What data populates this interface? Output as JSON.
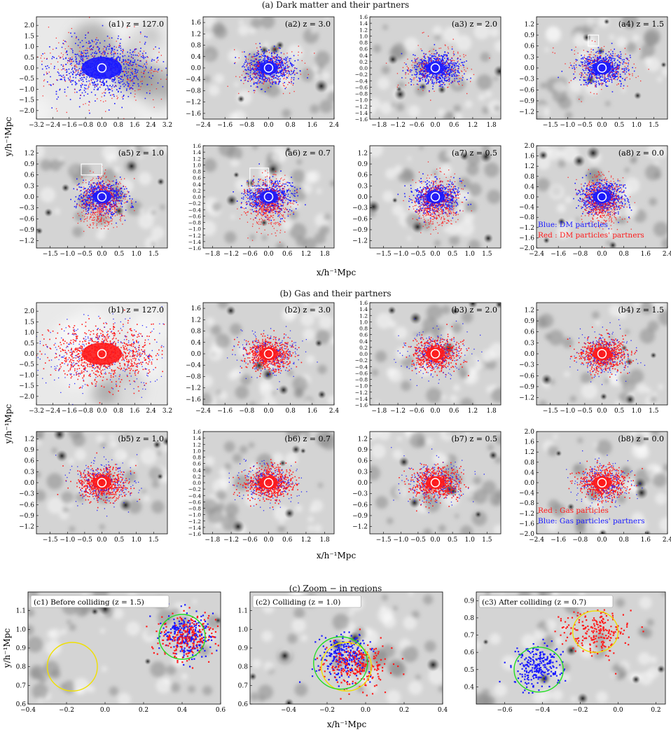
{
  "sections": {
    "a": "(a) Dark matter and their partners",
    "b": "(b) Gas and their partners",
    "c": "(c) Zoom − in regions"
  },
  "axis_labels": {
    "y": "y/h⁻¹Mpc",
    "x": "x/h⁻¹Mpc"
  },
  "colors": {
    "blue": "#1a1aff",
    "red": "#ff1a1a",
    "green": "#22dd22",
    "yellow": "#f0e000"
  },
  "chart_data": [
    {
      "id": "a1",
      "type": "scatter",
      "label": "(a1) z = 127.0",
      "primary": "blue",
      "xlim": [
        -3.2,
        3.2
      ],
      "ylim": [
        -2.4,
        2.4
      ],
      "xticks": [
        "−3.2",
        "−2.4",
        "−1.6",
        "−0.8",
        "0.0",
        "0.8",
        "1.6",
        "2.4",
        "3.2"
      ],
      "yticks": [
        "2.0",
        "1.5",
        "1.0",
        "0.5",
        "0.0",
        "−0.5",
        "−1.0",
        "−1.5",
        "−2.0"
      ],
      "bg": "smooth"
    },
    {
      "id": "a2",
      "type": "scatter",
      "label": "(a2) z = 3.0",
      "primary": "blue",
      "xlim": [
        -2.4,
        2.4
      ],
      "ylim": [
        -1.8,
        1.8
      ],
      "xticks": [
        "−2.4",
        "−1.6",
        "−0.8",
        "0.0",
        "0.8",
        "1.6",
        "2.4"
      ],
      "yticks": [
        "1.6",
        "1.2",
        "0.8",
        "0.4",
        "0.0",
        "−0.4",
        "−0.8",
        "−1.2",
        "−1.6"
      ],
      "bg": "web"
    },
    {
      "id": "a3",
      "type": "scatter",
      "label": "(a3) z = 2.0",
      "primary": "blue",
      "xlim": [
        -2.1,
        2.1
      ],
      "ylim": [
        -1.6,
        1.6
      ],
      "xticks": [
        "−1.8",
        "−1.2",
        "−0.6",
        "0.0",
        "0.6",
        "1.2",
        "1.8"
      ],
      "yticks": [
        "1.6",
        "1.4",
        "1.2",
        "1.0",
        "0.8",
        "0.6",
        "0.4",
        "0.2",
        "0.0",
        "−0.2",
        "−0.4",
        "−0.6",
        "−0.8",
        "−1.0",
        "−1.2",
        "−1.4",
        "−1.6"
      ],
      "bg": "web"
    },
    {
      "id": "a4",
      "type": "scatter",
      "label": "(a4) z = 1.5",
      "primary": "blue",
      "xlim": [
        -1.9,
        1.9
      ],
      "ylim": [
        -1.4,
        1.4
      ],
      "xticks": [
        "−1.5",
        "−1.0",
        "−0.5",
        "0.0",
        "0.5",
        "1.0",
        "1.5"
      ],
      "yticks": [
        "1.2",
        "0.9",
        "0.6",
        "0.3",
        "0.0",
        "−0.3",
        "−0.6",
        "−0.9",
        "−1.2"
      ],
      "bg": "web",
      "box": [
        -0.4,
        0.6,
        0.3,
        0.3
      ]
    },
    {
      "id": "a5",
      "type": "scatter",
      "label": "(a5) z = 1.0",
      "primary": "blue",
      "xlim": [
        -1.9,
        1.9
      ],
      "ylim": [
        -1.4,
        1.4
      ],
      "xticks": [
        "−1.5",
        "−1.0",
        "−0.5",
        "0.0",
        "0.5",
        "1.0",
        "1.5"
      ],
      "yticks": [
        "1.2",
        "0.9",
        "0.6",
        "0.3",
        "0.0",
        "−0.3",
        "−0.6",
        "−0.9",
        "−1.2"
      ],
      "bg": "web",
      "box": [
        -0.6,
        0.6,
        0.6,
        0.3
      ]
    },
    {
      "id": "a6",
      "type": "scatter",
      "label": "(a6) z = 0.7",
      "primary": "blue",
      "xlim": [
        -2.1,
        2.1
      ],
      "ylim": [
        -1.6,
        1.6
      ],
      "xticks": [
        "−1.8",
        "−1.2",
        "−0.6",
        "0.0",
        "0.6",
        "1.2",
        "1.8"
      ],
      "yticks": [
        "1.6",
        "1.4",
        "1.2",
        "1.0",
        "0.8",
        "0.6",
        "0.4",
        "0.2",
        "0.0",
        "−0.2",
        "−0.4",
        "−0.6",
        "−0.8",
        "−1.0",
        "−1.2",
        "−1.4",
        "−1.6"
      ],
      "bg": "web",
      "box": [
        -0.6,
        0.3,
        0.6,
        0.6
      ]
    },
    {
      "id": "a7",
      "type": "scatter",
      "label": "(a7) z = 0.5",
      "primary": "blue",
      "xlim": [
        -1.9,
        1.9
      ],
      "ylim": [
        -1.4,
        1.4
      ],
      "xticks": [
        "−1.5",
        "−1.0",
        "−0.5",
        "0.0",
        "0.5",
        "1.0",
        "1.5"
      ],
      "yticks": [
        "1.2",
        "0.9",
        "0.6",
        "0.3",
        "0.0",
        "−0.3",
        "−0.6",
        "−0.9",
        "−1.2"
      ],
      "bg": "web"
    },
    {
      "id": "a8",
      "type": "scatter",
      "label": "(a8) z = 0.0",
      "primary": "blue",
      "xlim": [
        -2.4,
        2.4
      ],
      "ylim": [
        -2.0,
        2.0
      ],
      "xticks": [
        "−2.4",
        "−1.6",
        "−0.8",
        "0.0",
        "0.8",
        "1.6",
        "2.4"
      ],
      "yticks": [
        "2.0",
        "1.6",
        "1.2",
        "0.8",
        "0.4",
        "0.0",
        "−0.4",
        "−0.8",
        "−1.2",
        "−1.6",
        "−2.0"
      ],
      "bg": "web",
      "legend": [
        {
          "text": "Blue: DM particles",
          "color": "blue"
        },
        {
          "text": "Red : DM particles' partners",
          "color": "red"
        }
      ]
    },
    {
      "id": "b1",
      "type": "scatter",
      "label": "(b1) z = 127.0",
      "primary": "red",
      "xlim": [
        -3.2,
        3.2
      ],
      "ylim": [
        -2.4,
        2.4
      ],
      "xticks": [
        "−3.2",
        "−2.4",
        "−1.6",
        "−0.8",
        "0.0",
        "0.8",
        "1.6",
        "2.4",
        "3.2"
      ],
      "yticks": [
        "2.0",
        "1.5",
        "1.0",
        "0.5",
        "0.0",
        "−0.5",
        "−1.0",
        "−1.5",
        "−2.0"
      ],
      "bg": "smooth"
    },
    {
      "id": "b2",
      "type": "scatter",
      "label": "(b2) z = 3.0",
      "primary": "red",
      "xlim": [
        -2.4,
        2.4
      ],
      "ylim": [
        -1.8,
        1.8
      ],
      "xticks": [
        "−2.4",
        "−1.6",
        "−0.8",
        "0.0",
        "0.8",
        "1.6",
        "2.4"
      ],
      "yticks": [
        "1.6",
        "1.2",
        "0.8",
        "0.4",
        "0.0",
        "−0.4",
        "−0.8",
        "−1.2",
        "−1.6"
      ],
      "bg": "web"
    },
    {
      "id": "b3",
      "type": "scatter",
      "label": "(b3) z = 2.0",
      "primary": "red",
      "xlim": [
        -2.1,
        2.1
      ],
      "ylim": [
        -1.6,
        1.6
      ],
      "xticks": [
        "−1.8",
        "−1.2",
        "−0.6",
        "0.0",
        "0.6",
        "1.2",
        "1.8"
      ],
      "yticks": [
        "1.6",
        "1.4",
        "1.2",
        "1.0",
        "0.8",
        "0.6",
        "0.4",
        "0.2",
        "0.0",
        "−0.2",
        "−0.4",
        "−0.6",
        "−0.8",
        "−1.0",
        "−1.2",
        "−1.4",
        "−1.6"
      ],
      "bg": "web"
    },
    {
      "id": "b4",
      "type": "scatter",
      "label": "(b4) z = 1.5",
      "primary": "red",
      "xlim": [
        -1.9,
        1.9
      ],
      "ylim": [
        -1.4,
        1.4
      ],
      "xticks": [
        "−1.5",
        "−1.0",
        "−0.5",
        "0.0",
        "0.5",
        "1.0",
        "1.5"
      ],
      "yticks": [
        "1.2",
        "0.9",
        "0.6",
        "0.3",
        "0.0",
        "−0.3",
        "−0.6",
        "−0.9",
        "−1.2"
      ],
      "bg": "web"
    },
    {
      "id": "b5",
      "type": "scatter",
      "label": "(b5) z = 1.0",
      "primary": "red",
      "xlim": [
        -1.9,
        1.9
      ],
      "ylim": [
        -1.4,
        1.4
      ],
      "xticks": [
        "−1.5",
        "−1.0",
        "−0.5",
        "0.0",
        "0.5",
        "1.0",
        "1.5"
      ],
      "yticks": [
        "1.2",
        "0.9",
        "0.6",
        "0.3",
        "0.0",
        "−0.3",
        "−0.6",
        "−0.9",
        "−1.2"
      ],
      "bg": "web"
    },
    {
      "id": "b6",
      "type": "scatter",
      "label": "(b6) z = 0.7",
      "primary": "red",
      "xlim": [
        -2.1,
        2.1
      ],
      "ylim": [
        -1.6,
        1.6
      ],
      "xticks": [
        "−1.8",
        "−1.2",
        "−0.6",
        "0.0",
        "0.6",
        "1.2",
        "1.8"
      ],
      "yticks": [
        "1.6",
        "1.4",
        "1.2",
        "1.0",
        "0.8",
        "0.6",
        "0.4",
        "0.2",
        "0.0",
        "−0.2",
        "−0.4",
        "−0.6",
        "−0.8",
        "−1.0",
        "−1.2",
        "−1.4",
        "−1.6"
      ],
      "bg": "web"
    },
    {
      "id": "b7",
      "type": "scatter",
      "label": "(b7) z = 0.5",
      "primary": "red",
      "xlim": [
        -1.9,
        1.9
      ],
      "ylim": [
        -1.4,
        1.4
      ],
      "xticks": [
        "−1.5",
        "−1.0",
        "−0.5",
        "0.0",
        "0.5",
        "1.0",
        "1.5"
      ],
      "yticks": [
        "1.2",
        "0.9",
        "0.6",
        "0.3",
        "0.0",
        "−0.3",
        "−0.6",
        "−0.9",
        "−1.2"
      ],
      "bg": "web"
    },
    {
      "id": "b8",
      "type": "scatter",
      "label": "(b8) z = 0.0",
      "primary": "red",
      "xlim": [
        -2.4,
        2.4
      ],
      "ylim": [
        -2.0,
        2.0
      ],
      "xticks": [
        "−2.4",
        "−1.6",
        "−0.8",
        "0.0",
        "0.8",
        "1.6",
        "2.4"
      ],
      "yticks": [
        "2.0",
        "1.6",
        "1.2",
        "0.8",
        "0.4",
        "0.0",
        "−0.4",
        "−0.8",
        "−1.2",
        "−1.6",
        "−2.0"
      ],
      "bg": "web",
      "legend": [
        {
          "text": "Red : Gas particles",
          "color": "red"
        },
        {
          "text": "Blue: Gas particles' partners",
          "color": "blue"
        }
      ]
    },
    {
      "id": "c1",
      "type": "scatter",
      "label": "(c1) Before colliding (z = 1.5)",
      "xlim": [
        -0.4,
        0.6
      ],
      "ylim": [
        0.6,
        1.2
      ],
      "xticks": [
        "−0.4",
        "−0.2",
        "0.0",
        "0.2",
        "0.4",
        "0.6"
      ],
      "yticks": [
        "1.1",
        "1.0",
        "0.9",
        "0.8",
        "0.7",
        "0.6"
      ],
      "circles": [
        {
          "cx": 0.4,
          "cy": 0.96,
          "r": 0.12,
          "color": "green"
        },
        {
          "cx": -0.17,
          "cy": 0.8,
          "r": 0.13,
          "color": "yellow"
        }
      ],
      "cluster_blue": [
        0.42,
        0.97
      ],
      "cluster_red": [
        0.42,
        0.96
      ]
    },
    {
      "id": "c2",
      "type": "scatter",
      "label": "(c2) Colliding (z = 1.0)",
      "xlim": [
        -0.6,
        0.4
      ],
      "ylim": [
        0.6,
        1.2
      ],
      "xticks": [
        "−0.4",
        "−0.2",
        "0.0",
        "0.2",
        "0.4"
      ],
      "yticks": [
        "1.1",
        "1.0",
        "0.9",
        "0.8",
        "0.7",
        "0.6"
      ],
      "circles": [
        {
          "cx": -0.1,
          "cy": 0.8,
          "r": 0.13,
          "color": "yellow"
        },
        {
          "cx": -0.13,
          "cy": 0.82,
          "r": 0.14,
          "color": "green"
        }
      ],
      "cluster_blue": [
        -0.12,
        0.86
      ],
      "cluster_red": [
        -0.04,
        0.81
      ]
    },
    {
      "id": "c3",
      "type": "scatter",
      "label": "(c3) After colliding (z = 0.7)",
      "xlim": [
        -0.75,
        0.25
      ],
      "ylim": [
        0.3,
        0.95
      ],
      "xticks": [
        "−0.6",
        "−0.4",
        "−0.2",
        "0.0",
        "0.2"
      ],
      "yticks": [
        "0.9",
        "0.8",
        "0.7",
        "0.6",
        "0.5",
        "0.4"
      ],
      "circles": [
        {
          "cx": -0.42,
          "cy": 0.5,
          "r": 0.13,
          "color": "green"
        },
        {
          "cx": -0.12,
          "cy": 0.72,
          "r": 0.12,
          "color": "yellow"
        }
      ],
      "cluster_blue": [
        -0.43,
        0.52
      ],
      "cluster_red": [
        -0.12,
        0.72
      ]
    }
  ]
}
